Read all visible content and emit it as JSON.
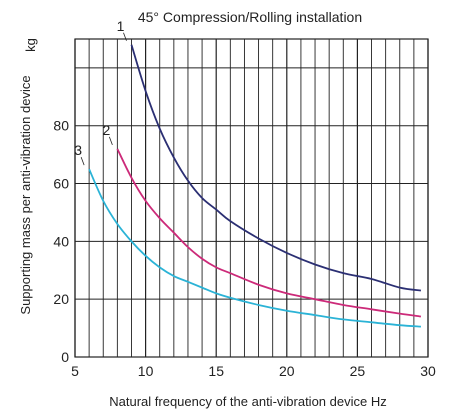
{
  "chart_data": {
    "type": "line",
    "title": "45° Compression/Rolling installation",
    "xlabel": "Natural frequency of the anti-vibration device Hz",
    "ylabel": "Supporting mass per anti-vibration device",
    "yunit": "kg",
    "xlim": [
      5,
      30
    ],
    "ylim": [
      0,
      110
    ],
    "xticks": [
      5,
      10,
      15,
      20,
      25,
      30
    ],
    "yticks": [
      0,
      20,
      40,
      60,
      80
    ],
    "grid": true,
    "colors": {
      "1": "#2b2f73",
      "2": "#cc2a79",
      "3": "#2bb3d6"
    },
    "series": [
      {
        "name": "1",
        "x": [
          9,
          10,
          11,
          12,
          13,
          14,
          15,
          16,
          18,
          20,
          22,
          24,
          26,
          28,
          29.5
        ],
        "y": [
          108,
          92,
          79,
          69,
          61,
          55,
          51,
          47,
          41,
          36,
          32,
          29,
          27,
          24,
          23
        ]
      },
      {
        "name": "2",
        "x": [
          8,
          9,
          10,
          11,
          12,
          13,
          14,
          15,
          16,
          18,
          20,
          22,
          24,
          26,
          28,
          29.5
        ],
        "y": [
          72,
          62,
          54,
          48,
          43,
          38,
          34,
          31,
          29,
          25,
          22,
          20,
          18,
          16.5,
          15,
          14
        ]
      },
      {
        "name": "3",
        "x": [
          6,
          7,
          8,
          9,
          10,
          11,
          12,
          13,
          14,
          15,
          16,
          18,
          20,
          22,
          24,
          26,
          28,
          29.5
        ],
        "y": [
          65,
          54,
          46,
          40,
          35,
          31,
          28,
          26,
          24,
          22,
          20.5,
          18,
          16,
          14.5,
          13,
          12,
          11,
          10.5
        ]
      }
    ]
  }
}
